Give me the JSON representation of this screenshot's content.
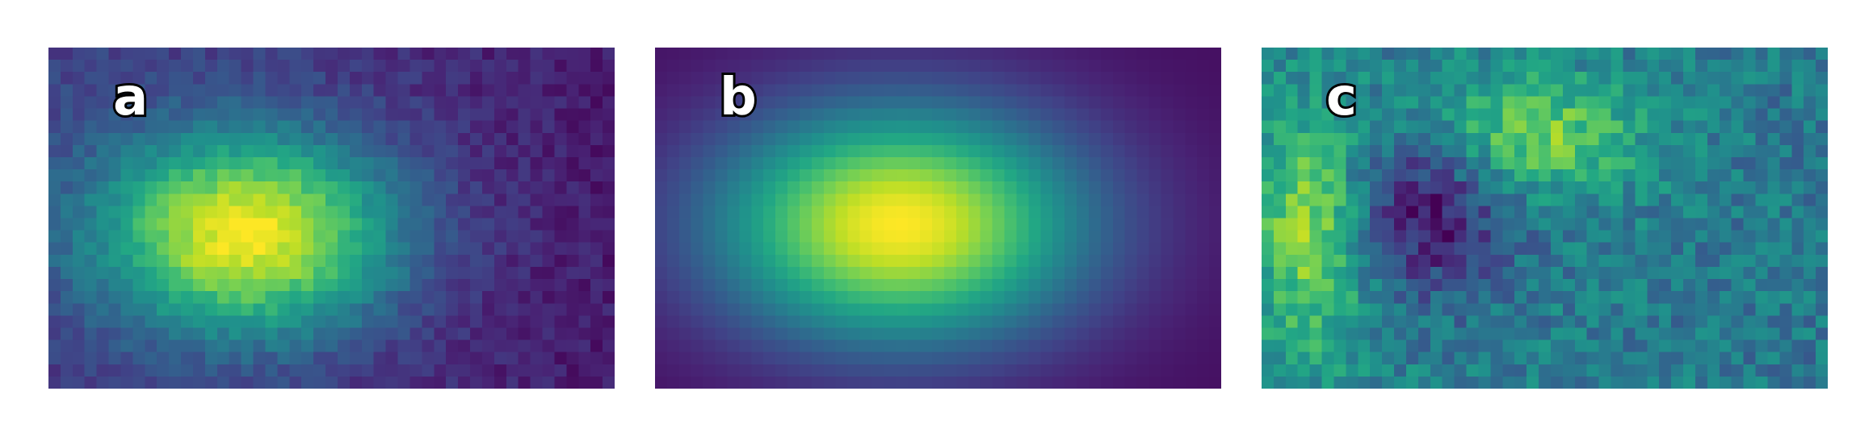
{
  "panels": [
    {
      "id": "a",
      "label": "a"
    },
    {
      "id": "b",
      "label": "b"
    },
    {
      "id": "c",
      "label": "c"
    }
  ],
  "colormap": "viridis",
  "colors": {
    "background": "#ffffff",
    "label_fill": "#ffffff",
    "label_outline": "#000000"
  }
}
